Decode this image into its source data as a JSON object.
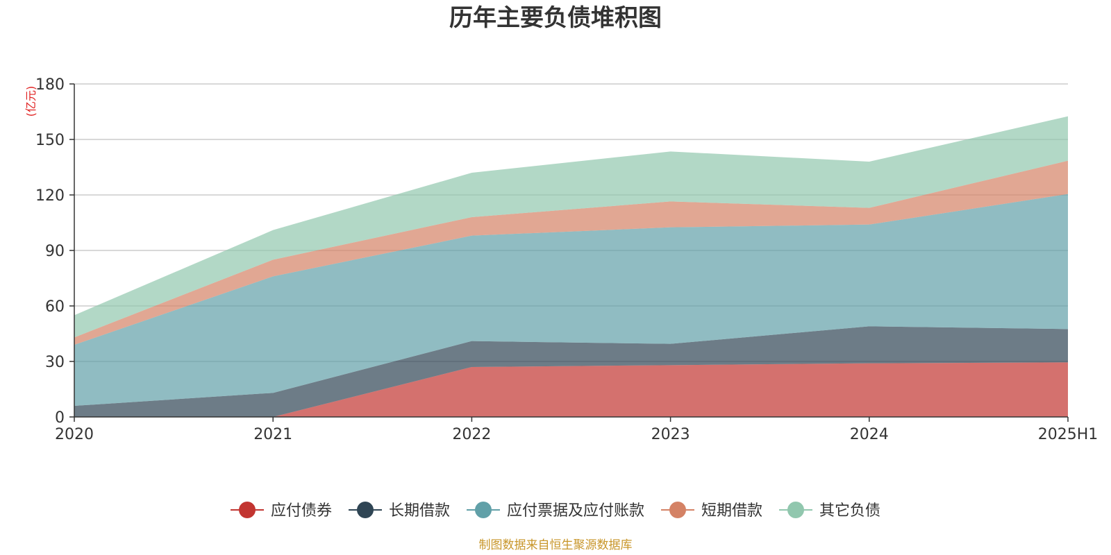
{
  "chart_data": {
    "type": "area",
    "stacked": true,
    "title": "历年主要负债堆积图",
    "unit_label": "(亿元)",
    "x": [
      "2020",
      "2021",
      "2022",
      "2023",
      "2024",
      "2025H1"
    ],
    "ylim": [
      0,
      180
    ],
    "yticks": [
      0,
      30,
      60,
      90,
      120,
      150,
      180
    ],
    "grid": true,
    "legend_position": "bottom",
    "series": [
      {
        "name": "应付债券",
        "color": "#c23531",
        "values": [
          0,
          0,
          27,
          28,
          29,
          29.5
        ]
      },
      {
        "name": "长期借款",
        "color": "#2f4554",
        "values": [
          6,
          13,
          14,
          11.5,
          20,
          18
        ]
      },
      {
        "name": "应付票据及应付账款",
        "color": "#61a0a8",
        "values": [
          33,
          63,
          57,
          63,
          55,
          73
        ]
      },
      {
        "name": "短期借款",
        "color": "#d48265",
        "values": [
          4,
          9,
          10,
          14,
          9,
          18
        ]
      },
      {
        "name": "其它负债",
        "color": "#91c7ae",
        "values": [
          12,
          16,
          24,
          27,
          25,
          24
        ]
      }
    ],
    "source": "制图数据来自恒生聚源数据库"
  }
}
